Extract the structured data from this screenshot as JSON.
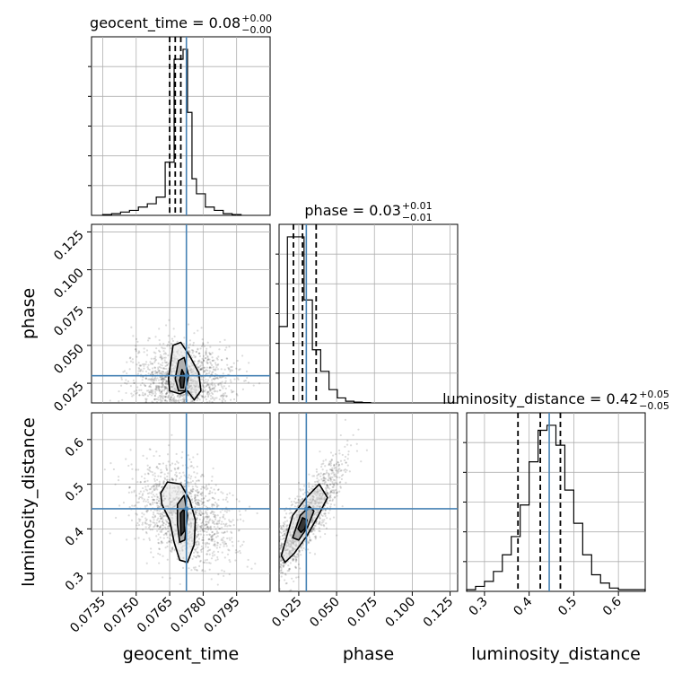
{
  "chart_data": {
    "type": "corner",
    "parameters": [
      "geocent_time",
      "phase",
      "luminosity_distance"
    ],
    "truths": {
      "geocent_time": 0.07725,
      "phase": 0.03,
      "luminosity_distance": 0.445
    },
    "titles": {
      "geocent_time": {
        "base": "geocent_time = 0.08",
        "sup": "+0.00",
        "sub": "−0.00"
      },
      "phase": {
        "base": "phase = 0.03",
        "sup": "+0.01",
        "sub": "−0.01"
      },
      "luminosity_distance": {
        "base": "luminosity_distance = 0.42",
        "sup": "+0.05",
        "sub": "−0.05"
      }
    },
    "axes": {
      "geocent_time": {
        "label": "geocent_time",
        "range": [
          0.073,
          0.081
        ],
        "ticks": [
          0.0735,
          0.075,
          0.0765,
          0.078,
          0.0795
        ],
        "tick_labels": [
          "0.0735",
          "0.0750",
          "0.0765",
          "0.0780",
          "0.0795"
        ]
      },
      "phase": {
        "label": "phase",
        "range": [
          0.012,
          0.13
        ],
        "ticks": [
          0.025,
          0.05,
          0.075,
          0.1,
          0.125
        ],
        "tick_labels": [
          "0.025",
          "0.050",
          "0.075",
          "0.100",
          "0.125"
        ]
      },
      "luminosity_distance": {
        "label": "luminosity_distance",
        "range": [
          0.26,
          0.66
        ],
        "ticks": [
          0.3,
          0.4,
          0.5,
          0.6
        ],
        "tick_labels": [
          "0.3",
          "0.4",
          "0.5",
          "0.6"
        ]
      }
    },
    "histograms": {
      "geocent_time": {
        "bin_edges": [
          0.0735,
          0.0739,
          0.0743,
          0.0747,
          0.0751,
          0.0755,
          0.0759,
          0.0763,
          0.0767,
          0.0771,
          0.0773,
          0.0775,
          0.0777,
          0.0781,
          0.0785,
          0.0789,
          0.0793,
          0.0797
        ],
        "counts": [
          0.005,
          0.01,
          0.02,
          0.03,
          0.05,
          0.07,
          0.11,
          0.32,
          0.94,
          1.0,
          0.62,
          0.22,
          0.13,
          0.05,
          0.03,
          0.01,
          0.005
        ],
        "quantiles": [
          0.0765,
          0.07675,
          0.077
        ]
      },
      "phase": {
        "bin_edges": [
          0.012,
          0.0175,
          0.023,
          0.0285,
          0.034,
          0.0395,
          0.045,
          0.0505,
          0.056,
          0.0615,
          0.067,
          0.0725
        ],
        "counts": [
          0.46,
          1.0,
          1.0,
          0.62,
          0.32,
          0.19,
          0.08,
          0.03,
          0.01,
          0.005,
          0.002
        ],
        "quantiles": [
          0.0215,
          0.0275,
          0.0365
        ]
      },
      "luminosity_distance": {
        "bin_edges": [
          0.26,
          0.28,
          0.3,
          0.32,
          0.34,
          0.36,
          0.38,
          0.4,
          0.42,
          0.44,
          0.46,
          0.48,
          0.5,
          0.52,
          0.54,
          0.56,
          0.58,
          0.6,
          0.66
        ],
        "counts": [
          0.01,
          0.03,
          0.06,
          0.12,
          0.22,
          0.33,
          0.52,
          0.78,
          0.97,
          1.0,
          0.88,
          0.61,
          0.41,
          0.22,
          0.1,
          0.05,
          0.02,
          0.01
        ],
        "quantiles": [
          0.375,
          0.425,
          0.47
        ]
      }
    },
    "pairs": [
      {
        "x": "geocent_time",
        "y": "phase",
        "center": [
          0.07705,
          0.027
        ],
        "spread": [
          0.0011,
          0.012
        ],
        "correlation": 0.0,
        "contours": [
          [
            [
              0.07645,
              0.028
            ],
            [
              0.07665,
              0.05
            ],
            [
              0.077,
              0.052
            ],
            [
              0.0774,
              0.043
            ],
            [
              0.0778,
              0.032
            ],
            [
              0.0779,
              0.02
            ],
            [
              0.0776,
              0.014
            ],
            [
              0.0773,
              0.02
            ],
            [
              0.07695,
              0.018
            ],
            [
              0.0765,
              0.02
            ]
          ],
          [
            [
              0.07675,
              0.028
            ],
            [
              0.0769,
              0.04
            ],
            [
              0.07715,
              0.042
            ],
            [
              0.07735,
              0.03
            ],
            [
              0.0772,
              0.02
            ],
            [
              0.0769,
              0.02
            ]
          ],
          [
            [
              0.07695,
              0.027
            ],
            [
              0.07705,
              0.034
            ],
            [
              0.07718,
              0.03
            ],
            [
              0.07712,
              0.022
            ],
            [
              0.077,
              0.022
            ]
          ]
        ]
      },
      {
        "x": "geocent_time",
        "y": "luminosity_distance",
        "center": [
          0.0771,
          0.43
        ],
        "spread": [
          0.0011,
          0.055
        ],
        "correlation": -0.35,
        "contours": [
          [
            [
              0.0761,
              0.48
            ],
            [
              0.0764,
              0.505
            ],
            [
              0.077,
              0.5
            ],
            [
              0.0774,
              0.465
            ],
            [
              0.07765,
              0.42
            ],
            [
              0.0776,
              0.365
            ],
            [
              0.0773,
              0.325
            ],
            [
              0.07695,
              0.33
            ],
            [
              0.0767,
              0.37
            ],
            [
              0.0765,
              0.42
            ],
            [
              0.07615,
              0.455
            ]
          ],
          [
            [
              0.07685,
              0.455
            ],
            [
              0.07715,
              0.475
            ],
            [
              0.0773,
              0.43
            ],
            [
              0.07718,
              0.375
            ],
            [
              0.07695,
              0.37
            ],
            [
              0.07685,
              0.41
            ]
          ],
          [
            [
              0.07698,
              0.435
            ],
            [
              0.07715,
              0.445
            ],
            [
              0.07716,
              0.395
            ],
            [
              0.077,
              0.385
            ]
          ]
        ]
      },
      {
        "x": "phase",
        "y": "luminosity_distance",
        "center": [
          0.029,
          0.42
        ],
        "spread": [
          0.012,
          0.065
        ],
        "correlation": 0.85,
        "contours": [
          [
            [
              0.0135,
              0.34
            ],
            [
              0.021,
              0.43
            ],
            [
              0.03,
              0.47
            ],
            [
              0.0385,
              0.5
            ],
            [
              0.044,
              0.47
            ],
            [
              0.038,
              0.43
            ],
            [
              0.0305,
              0.385
            ],
            [
              0.022,
              0.345
            ],
            [
              0.016,
              0.325
            ]
          ],
          [
            [
              0.021,
              0.38
            ],
            [
              0.026,
              0.43
            ],
            [
              0.032,
              0.45
            ],
            [
              0.035,
              0.44
            ],
            [
              0.031,
              0.405
            ],
            [
              0.025,
              0.375
            ]
          ],
          [
            [
              0.0245,
              0.4
            ],
            [
              0.0275,
              0.425
            ],
            [
              0.0305,
              0.42
            ],
            [
              0.029,
              0.4
            ],
            [
              0.0265,
              0.392
            ]
          ]
        ]
      }
    ]
  }
}
